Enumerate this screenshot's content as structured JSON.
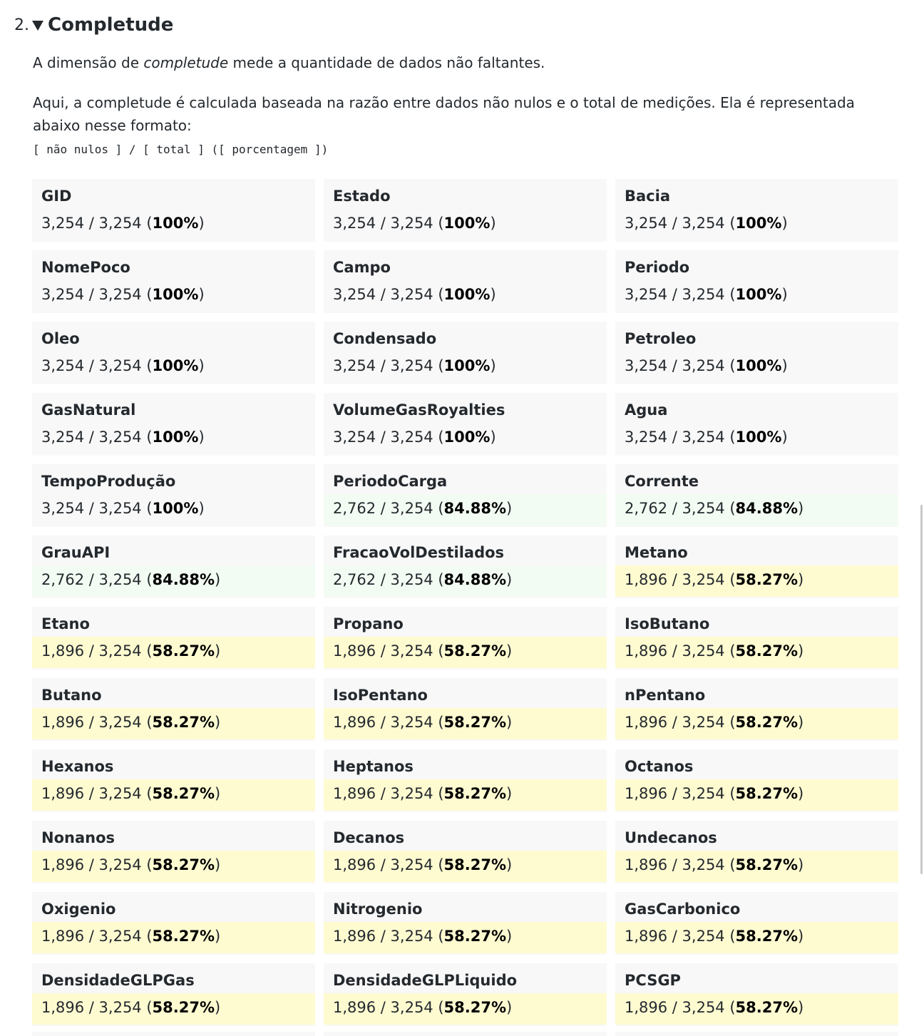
{
  "section": {
    "number": "2.",
    "title": "Completude",
    "paragraph1_before": "A dimensão de ",
    "paragraph1_em": "completude",
    "paragraph1_after": " mede a quantidade de dados não faltantes.",
    "paragraph2": "Aqui, a completude é calculada baseada na razão entre dados não nulos e o total de medições. Ela é representada abaixo nesse formato:",
    "format": "[ não nulos ] / [ total ] ([ porcentagem ])"
  },
  "colors": {
    "card_bg": "#f8f8f8",
    "mid_bg": "#f3fcf3",
    "low_bg": "#fffbd1"
  },
  "cards": [
    {
      "name": "GID",
      "ratio": "3,254 / 3,254",
      "pct": "100%",
      "level": "full"
    },
    {
      "name": "Estado",
      "ratio": "3,254 / 3,254",
      "pct": "100%",
      "level": "full"
    },
    {
      "name": "Bacia",
      "ratio": "3,254 / 3,254",
      "pct": "100%",
      "level": "full"
    },
    {
      "name": "NomePoco",
      "ratio": "3,254 / 3,254",
      "pct": "100%",
      "level": "full"
    },
    {
      "name": "Campo",
      "ratio": "3,254 / 3,254",
      "pct": "100%",
      "level": "full"
    },
    {
      "name": "Periodo",
      "ratio": "3,254 / 3,254",
      "pct": "100%",
      "level": "full"
    },
    {
      "name": "Oleo",
      "ratio": "3,254 / 3,254",
      "pct": "100%",
      "level": "full"
    },
    {
      "name": "Condensado",
      "ratio": "3,254 / 3,254",
      "pct": "100%",
      "level": "full"
    },
    {
      "name": "Petroleo",
      "ratio": "3,254 / 3,254",
      "pct": "100%",
      "level": "full"
    },
    {
      "name": "GasNatural",
      "ratio": "3,254 / 3,254",
      "pct": "100%",
      "level": "full"
    },
    {
      "name": "VolumeGasRoyalties",
      "ratio": "3,254 / 3,254",
      "pct": "100%",
      "level": "full"
    },
    {
      "name": "Agua",
      "ratio": "3,254 / 3,254",
      "pct": "100%",
      "level": "full"
    },
    {
      "name": "TempoProdução",
      "ratio": "3,254 / 3,254",
      "pct": "100%",
      "level": "full"
    },
    {
      "name": "PeriodoCarga",
      "ratio": "2,762 / 3,254",
      "pct": "84.88%",
      "level": "mid"
    },
    {
      "name": "Corrente",
      "ratio": "2,762 / 3,254",
      "pct": "84.88%",
      "level": "mid"
    },
    {
      "name": "GrauAPI",
      "ratio": "2,762 / 3,254",
      "pct": "84.88%",
      "level": "mid"
    },
    {
      "name": "FracaoVolDestilados",
      "ratio": "2,762 / 3,254",
      "pct": "84.88%",
      "level": "mid"
    },
    {
      "name": "Metano",
      "ratio": "1,896 / 3,254",
      "pct": "58.27%",
      "level": "low"
    },
    {
      "name": "Etano",
      "ratio": "1,896 / 3,254",
      "pct": "58.27%",
      "level": "low"
    },
    {
      "name": "Propano",
      "ratio": "1,896 / 3,254",
      "pct": "58.27%",
      "level": "low"
    },
    {
      "name": "IsoButano",
      "ratio": "1,896 / 3,254",
      "pct": "58.27%",
      "level": "low"
    },
    {
      "name": "Butano",
      "ratio": "1,896 / 3,254",
      "pct": "58.27%",
      "level": "low"
    },
    {
      "name": "IsoPentano",
      "ratio": "1,896 / 3,254",
      "pct": "58.27%",
      "level": "low"
    },
    {
      "name": "nPentano",
      "ratio": "1,896 / 3,254",
      "pct": "58.27%",
      "level": "low"
    },
    {
      "name": "Hexanos",
      "ratio": "1,896 / 3,254",
      "pct": "58.27%",
      "level": "low"
    },
    {
      "name": "Heptanos",
      "ratio": "1,896 / 3,254",
      "pct": "58.27%",
      "level": "low"
    },
    {
      "name": "Octanos",
      "ratio": "1,896 / 3,254",
      "pct": "58.27%",
      "level": "low"
    },
    {
      "name": "Nonanos",
      "ratio": "1,896 / 3,254",
      "pct": "58.27%",
      "level": "low"
    },
    {
      "name": "Decanos",
      "ratio": "1,896 / 3,254",
      "pct": "58.27%",
      "level": "low"
    },
    {
      "name": "Undecanos",
      "ratio": "1,896 / 3,254",
      "pct": "58.27%",
      "level": "low"
    },
    {
      "name": "Oxigenio",
      "ratio": "1,896 / 3,254",
      "pct": "58.27%",
      "level": "low"
    },
    {
      "name": "Nitrogenio",
      "ratio": "1,896 / 3,254",
      "pct": "58.27%",
      "level": "low"
    },
    {
      "name": "GasCarbonico",
      "ratio": "1,896 / 3,254",
      "pct": "58.27%",
      "level": "low"
    },
    {
      "name": "DensidadeGLPGas",
      "ratio": "1,896 / 3,254",
      "pct": "58.27%",
      "level": "low"
    },
    {
      "name": "DensidadeGLPLiquido",
      "ratio": "1,896 / 3,254",
      "pct": "58.27%",
      "level": "low"
    },
    {
      "name": "PCSGP",
      "ratio": "1,896 / 3,254",
      "pct": "58.27%",
      "level": "low"
    }
  ]
}
